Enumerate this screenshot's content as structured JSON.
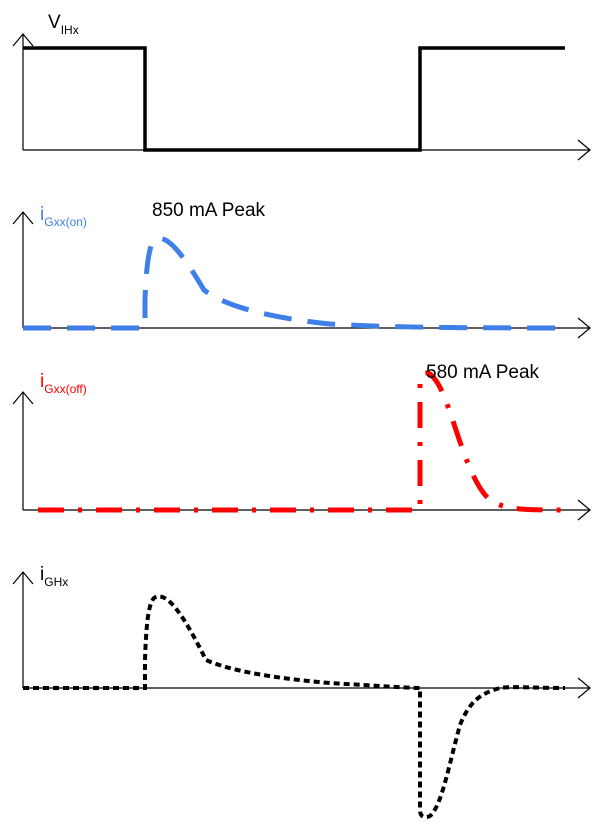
{
  "colors": {
    "axis": "#000000",
    "vih": "#000000",
    "on": "#3f7fe8",
    "off": "#ff0000",
    "ghx": "#000000"
  },
  "panels": {
    "vih": {
      "label_main": "V",
      "label_sub": "IHx"
    },
    "on": {
      "label_main": "i",
      "label_sub": "Gxx(on)",
      "peak": "850 mA Peak"
    },
    "off": {
      "label_main": "i",
      "label_sub": "Gxx(off)",
      "peak": "580 mA Peak"
    },
    "ghx": {
      "label_main": "i",
      "label_sub": "GHx"
    }
  }
}
